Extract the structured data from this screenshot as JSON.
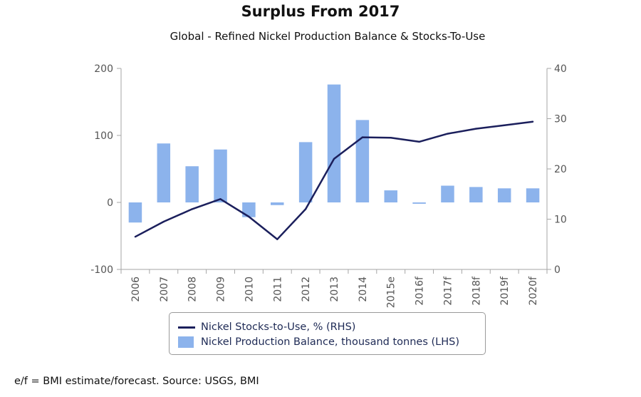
{
  "chart_data": {
    "type": "bar+line",
    "title": "Surplus From 2017",
    "subtitle": "Global - Refined Nickel Production Balance & Stocks-To-Use",
    "categories": [
      "2006",
      "2007",
      "2008",
      "2009",
      "2010",
      "2011",
      "2012",
      "2013",
      "2014",
      "2015e",
      "2016f",
      "2017f",
      "2018f",
      "2019f",
      "2020f"
    ],
    "left_axis": {
      "min": -100,
      "max": 200,
      "ticks": [
        "-100",
        "0",
        "100",
        "200"
      ]
    },
    "right_axis": {
      "min": 0,
      "max": 40,
      "ticks": [
        "0",
        "10",
        "20",
        "30",
        "40"
      ]
    },
    "series": [
      {
        "name": "Nickel Stocks-to-Use, % (RHS)",
        "type": "line",
        "axis": "right",
        "color": "#1b1f5c",
        "values": [
          6.5,
          9.5,
          12,
          14,
          10.5,
          6,
          12,
          22,
          26.3,
          26.2,
          25.4,
          27,
          28,
          28.7,
          29.4
        ]
      },
      {
        "name": "Nickel Production Balance, thousand tonnes (LHS)",
        "type": "bar",
        "axis": "left",
        "color": "#8cb3ec",
        "values": [
          -30,
          88,
          54,
          79,
          -22,
          -4,
          90,
          176,
          123,
          18,
          -2,
          25,
          23,
          21,
          21
        ]
      }
    ],
    "grid": false,
    "legend_position": "bottom"
  },
  "legend": {
    "line_label": "Nickel Stocks-to-Use, % (RHS)",
    "bar_label": "Nickel Production Balance, thousand tonnes (LHS)"
  },
  "footnote": "e/f = BMI estimate/forecast. Source: USGS, BMI"
}
